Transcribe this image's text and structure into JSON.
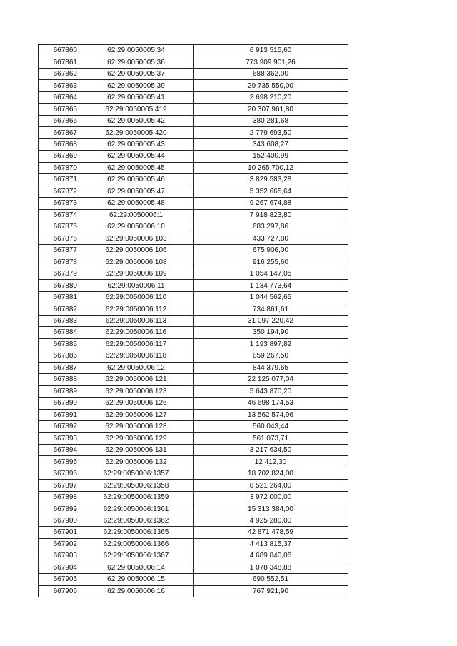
{
  "table": {
    "rows": [
      [
        "667860",
        "62:29:0050005:34",
        "6 913 515,60"
      ],
      [
        "667861",
        "62:29:0050005:36",
        "773 909 901,26"
      ],
      [
        "667862",
        "62:29:0050005:37",
        "688 362,00"
      ],
      [
        "667863",
        "62:29:0050005:39",
        "29 735 550,00"
      ],
      [
        "667864",
        "62:29:0050005:41",
        "2 698 210,20"
      ],
      [
        "667865",
        "62:29:0050005:419",
        "20 307 961,80"
      ],
      [
        "667866",
        "62:29:0050005:42",
        "380 281,68"
      ],
      [
        "667867",
        "62:29:0050005:420",
        "2 779 693,50"
      ],
      [
        "667868",
        "62:29:0050005:43",
        "343 608,27"
      ],
      [
        "667869",
        "62:29:0050005:44",
        "152 400,99"
      ],
      [
        "667870",
        "62:29:0050005:45",
        "10 265 700,12"
      ],
      [
        "667871",
        "62:29:0050005:46",
        "3 829 583,28"
      ],
      [
        "667872",
        "62:29:0050005:47",
        "5 352 665,64"
      ],
      [
        "667873",
        "62:29:0050005:48",
        "9 267 674,88"
      ],
      [
        "667874",
        "62:29:0050006:1",
        "7 918 823,80"
      ],
      [
        "667875",
        "62:29:0050006:10",
        "683 297,86"
      ],
      [
        "667876",
        "62:29:0050006:103",
        "433 727,80"
      ],
      [
        "667877",
        "62:29:0050006:106",
        "675 906,00"
      ],
      [
        "667878",
        "62:29:0050006:108",
        "916 255,60"
      ],
      [
        "667879",
        "62:29:0050006:109",
        "1 054 147,05"
      ],
      [
        "667880",
        "62:29:0050006:11",
        "1 134 773,64"
      ],
      [
        "667881",
        "62:29:0050006:110",
        "1 044 562,65"
      ],
      [
        "667882",
        "62:29:0050006:112",
        "734 861,61"
      ],
      [
        "667883",
        "62:29:0050006:113",
        "31 097 220,42"
      ],
      [
        "667884",
        "62:29:0050006:116",
        "350 194,90"
      ],
      [
        "667885",
        "62:29:0050006:117",
        "1 193 897,82"
      ],
      [
        "667886",
        "62:29:0050006:118",
        "859 267,50"
      ],
      [
        "667887",
        "62:29:0050006:12",
        "844 379,65"
      ],
      [
        "667888",
        "62:29:0050006:121",
        "22 125 077,04"
      ],
      [
        "667889",
        "62:29:0050006:123",
        "5 643 870,20"
      ],
      [
        "667890",
        "62:29:0050006:126",
        "46 698 174,53"
      ],
      [
        "667891",
        "62:29:0050006:127",
        "13 562 574,96"
      ],
      [
        "667892",
        "62:29:0050006:128",
        "560 043,44"
      ],
      [
        "667893",
        "62:29:0050006:129",
        "561 073,71"
      ],
      [
        "667894",
        "62:29:0050006:131",
        "3 217 634,50"
      ],
      [
        "667895",
        "62:29:0050006:132",
        "12 412,30"
      ],
      [
        "667896",
        "62:29:0050006:1357",
        "18 702 824,00"
      ],
      [
        "667897",
        "62:29:0050006:1358",
        "8 521 264,00"
      ],
      [
        "667898",
        "62:29:0050006:1359",
        "3 972 000,00"
      ],
      [
        "667899",
        "62:29:0050006:1361",
        "15 313 384,00"
      ],
      [
        "667900",
        "62:29:0050006:1362",
        "4 925 280,00"
      ],
      [
        "667901",
        "62:29:0050006:1365",
        "42 871 478,59"
      ],
      [
        "667902",
        "62:29:0050006:1366",
        "4 413 815,37"
      ],
      [
        "667903",
        "62:29:0050006:1367",
        "4 689 840,06"
      ],
      [
        "667904",
        "62:29:0050006:14",
        "1 078 348,88"
      ],
      [
        "667905",
        "62:29:0050006:15",
        "690 552,51"
      ],
      [
        "667906",
        "62:29:0050006:16",
        "767 921,90"
      ]
    ]
  }
}
